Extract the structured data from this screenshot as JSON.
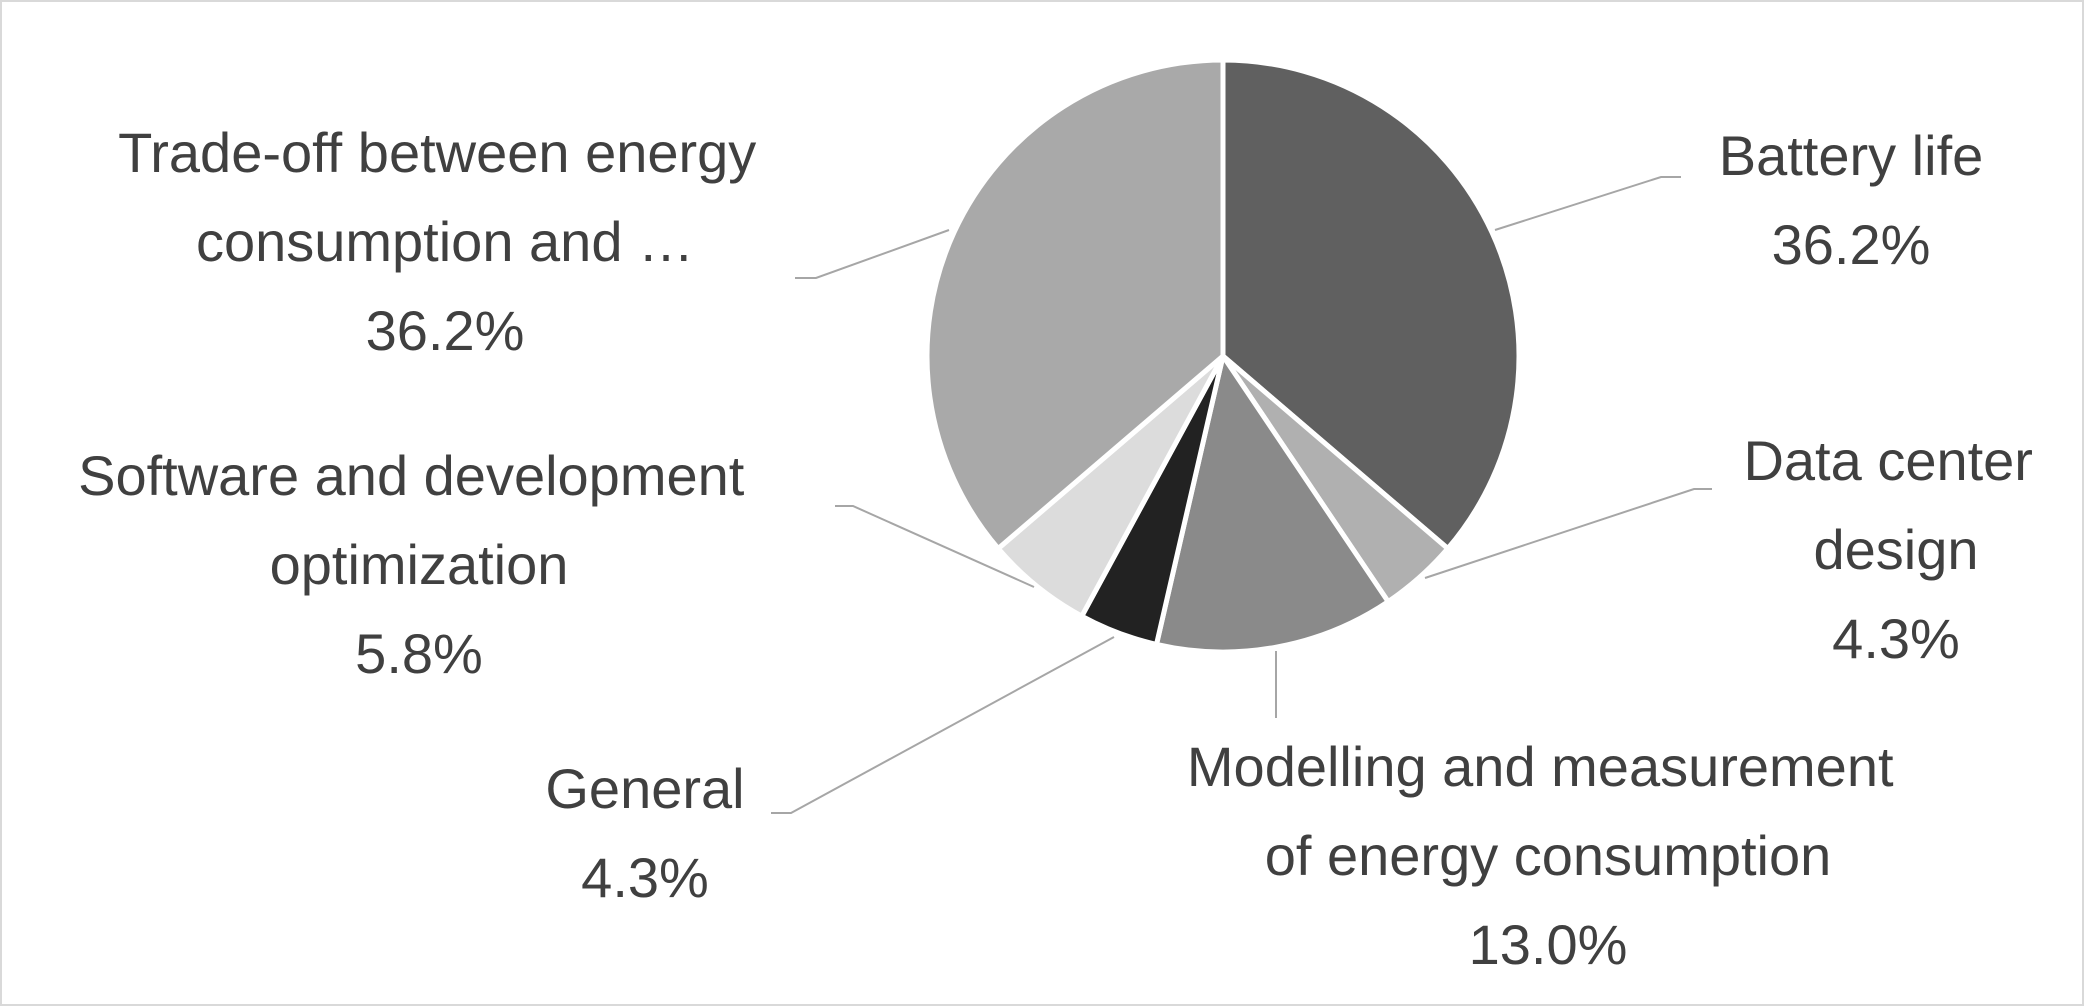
{
  "chart_data": {
    "type": "pie",
    "categories": [
      "Battery life",
      "Data center design",
      "Modelling and measurement of energy consumption",
      "General",
      "Software and development optimization",
      "Trade-off between energy consumption and …"
    ],
    "values": [
      36.2,
      4.3,
      13.0,
      4.3,
      5.8,
      36.2
    ],
    "value_labels": [
      "36.2%",
      "4.3%",
      "13.0%",
      "4.3%",
      "5.8%",
      "36.2%"
    ],
    "colors": [
      "#606060",
      "#b0b0b0",
      "#8a8a8a",
      "#222222",
      "#dcdcdc",
      "#a9a9a9"
    ]
  }
}
